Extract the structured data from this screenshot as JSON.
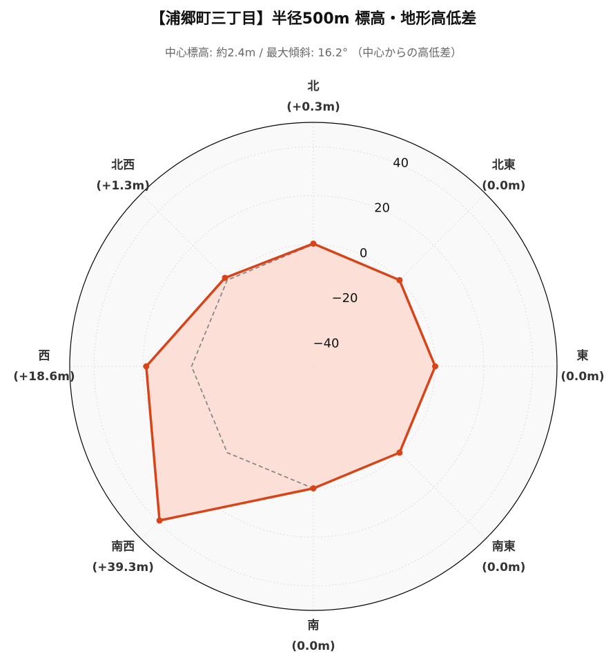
{
  "chart_data": {
    "type": "radar",
    "title": "【浦郷町三丁目】半径500m 標高・地形高低差",
    "subtitle": "中心標高: 約2.4m / 最大傾斜: 16.2° （中心からの高低差）",
    "categories": [
      "北",
      "北東",
      "東",
      "南東",
      "南",
      "南西",
      "西",
      "北西"
    ],
    "series": [
      {
        "color": "#d6441a",
        "fill": "#fcdcd3",
        "values": [
          0.3,
          0,
          0,
          0,
          0,
          39.3,
          18.6,
          1.3
        ],
        "value_labels": [
          "(+0.3m)",
          "(0.0m)",
          "(0.0m)",
          "(0.0m)",
          "(0.0m)",
          "(+39.3m)",
          "(+18.6m)",
          "(+1.3m)"
        ]
      },
      {
        "color": "#888888",
        "dashed": true,
        "values": [
          0,
          0,
          0,
          0,
          0,
          0,
          0,
          0
        ]
      }
    ],
    "ylim": [
      -50,
      50
    ],
    "yticks": [
      {
        "value": -40,
        "label": "−40"
      },
      {
        "value": -20,
        "label": "−20"
      },
      0,
      20,
      40
    ],
    "grid": true
  }
}
